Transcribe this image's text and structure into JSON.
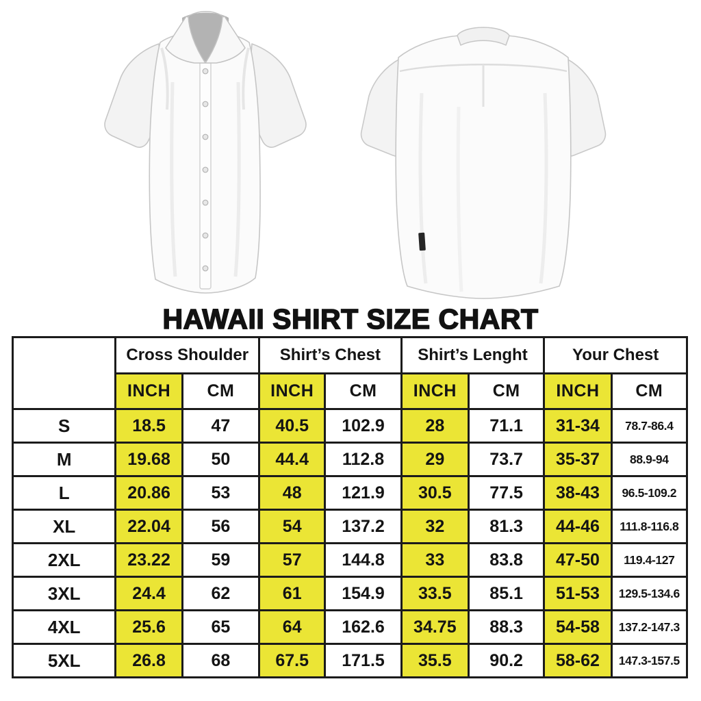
{
  "title": "HAWAII SHIRT SIZE CHART",
  "images": {
    "front_shirt": "white short-sleeve button-up shirt, front view",
    "back_shirt": "white short-sleeve button-up shirt, back view"
  },
  "colors": {
    "highlight_yellow": "#ebe535",
    "border_black": "#1b1b1b",
    "text_black": "#141414"
  },
  "chart_data": {
    "type": "table",
    "title": "HAWAII SHIRT SIZE CHART",
    "column_groups": [
      "Cross Shoulder",
      "Shirt’s Chest",
      "Shirt’s Lenght",
      "Your Chest"
    ],
    "unit_headers": [
      "INCH",
      "CM",
      "INCH",
      "CM",
      "INCH",
      "CM",
      "INCH",
      "CM"
    ],
    "rows": [
      {
        "size": "S",
        "values": [
          "18.5",
          "47",
          "40.5",
          "102.9",
          "28",
          "71.1",
          "31-34",
          "78.7-86.4"
        ]
      },
      {
        "size": "M",
        "values": [
          "19.68",
          "50",
          "44.4",
          "112.8",
          "29",
          "73.7",
          "35-37",
          "88.9-94"
        ]
      },
      {
        "size": "L",
        "values": [
          "20.86",
          "53",
          "48",
          "121.9",
          "30.5",
          "77.5",
          "38-43",
          "96.5-109.2"
        ]
      },
      {
        "size": "XL",
        "values": [
          "22.04",
          "56",
          "54",
          "137.2",
          "32",
          "81.3",
          "44-46",
          "111.8-116.8"
        ]
      },
      {
        "size": "2XL",
        "values": [
          "23.22",
          "59",
          "57",
          "144.8",
          "33",
          "83.8",
          "47-50",
          "119.4-127"
        ]
      },
      {
        "size": "3XL",
        "values": [
          "24.4",
          "62",
          "61",
          "154.9",
          "33.5",
          "85.1",
          "51-53",
          "129.5-134.6"
        ]
      },
      {
        "size": "4XL",
        "values": [
          "25.6",
          "65",
          "64",
          "162.6",
          "34.75",
          "88.3",
          "54-58",
          "137.2-147.3"
        ]
      },
      {
        "size": "5XL",
        "values": [
          "26.8",
          "68",
          "67.5",
          "171.5",
          "35.5",
          "90.2",
          "58-62",
          "147.3-157.5"
        ]
      }
    ]
  }
}
